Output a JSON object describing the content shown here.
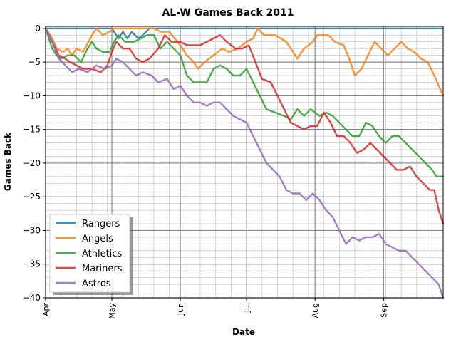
{
  "chart_data": {
    "type": "line",
    "title": "AL-W Games Back 2011",
    "xlabel": "Date",
    "ylabel": "Games Back",
    "xlim": [
      "2011-04-01",
      "2011-09-28"
    ],
    "ylim": [
      -40,
      0.3
    ],
    "yticks": [
      0,
      -5,
      -10,
      -15,
      -20,
      -25,
      -30,
      -35,
      -40
    ],
    "ytick_labels": [
      "0",
      "−5",
      "−10",
      "−15",
      "−20",
      "−25",
      "−30",
      "−35",
      "−40"
    ],
    "xticks": [
      {
        "date": "2011-04-01",
        "label": "Apr"
      },
      {
        "date": "2011-05-01",
        "label": "May"
      },
      {
        "date": "2011-06-01",
        "label": "Jun"
      },
      {
        "date": "2011-07-01",
        "label": "Jul"
      },
      {
        "date": "2011-08-01",
        "label": "Aug"
      },
      {
        "date": "2011-09-01",
        "label": "Sep"
      }
    ],
    "grid": {
      "major": true,
      "minor": true
    },
    "legend_position": "lower-left",
    "series": [
      {
        "name": "Rangers",
        "color": "#1f77b4",
        "points": [
          [
            "2011-04-01",
            0
          ],
          [
            "2011-05-01",
            0
          ],
          [
            "2011-05-04",
            -1.5
          ],
          [
            "2011-05-06",
            -0.5
          ],
          [
            "2011-05-08",
            -1.5
          ],
          [
            "2011-05-10",
            -0.5
          ],
          [
            "2011-05-13",
            -1.5
          ],
          [
            "2011-05-15",
            -1
          ],
          [
            "2011-05-18",
            0
          ],
          [
            "2011-09-28",
            0
          ]
        ]
      },
      {
        "name": "Angels",
        "color": "#ff7f0e",
        "points": [
          [
            "2011-04-01",
            0
          ],
          [
            "2011-04-04",
            -1.5
          ],
          [
            "2011-04-06",
            -3
          ],
          [
            "2011-04-09",
            -3.5
          ],
          [
            "2011-04-11",
            -3
          ],
          [
            "2011-04-13",
            -4
          ],
          [
            "2011-04-15",
            -3
          ],
          [
            "2011-04-18",
            -3.5
          ],
          [
            "2011-04-22",
            -1
          ],
          [
            "2011-04-24",
            0
          ],
          [
            "2011-04-27",
            -1
          ],
          [
            "2011-04-30",
            -0.5
          ],
          [
            "2011-05-02",
            0
          ],
          [
            "2011-05-20",
            0
          ],
          [
            "2011-05-23",
            -0.5
          ],
          [
            "2011-05-27",
            -0.5
          ],
          [
            "2011-06-01",
            -2.5
          ],
          [
            "2011-06-04",
            -4
          ],
          [
            "2011-06-07",
            -5
          ],
          [
            "2011-06-09",
            -6
          ],
          [
            "2011-06-12",
            -5
          ],
          [
            "2011-06-16",
            -4
          ],
          [
            "2011-06-20",
            -3
          ],
          [
            "2011-06-23",
            -3.5
          ],
          [
            "2011-06-27",
            -3
          ],
          [
            "2011-07-01",
            -2
          ],
          [
            "2011-07-04",
            -1.5
          ],
          [
            "2011-07-06",
            0
          ],
          [
            "2011-07-09",
            -1
          ],
          [
            "2011-07-14",
            -1
          ],
          [
            "2011-07-19",
            -2
          ],
          [
            "2011-07-22",
            -3.5
          ],
          [
            "2011-07-24",
            -4.5
          ],
          [
            "2011-07-27",
            -3
          ],
          [
            "2011-07-31",
            -2
          ],
          [
            "2011-08-02",
            -1
          ],
          [
            "2011-08-07",
            -1
          ],
          [
            "2011-08-10",
            -2
          ],
          [
            "2011-08-14",
            -2.5
          ],
          [
            "2011-08-17",
            -5
          ],
          [
            "2011-08-19",
            -7
          ],
          [
            "2011-08-22",
            -6
          ],
          [
            "2011-08-25",
            -4
          ],
          [
            "2011-08-28",
            -2
          ],
          [
            "2011-08-31",
            -3
          ],
          [
            "2011-09-03",
            -4
          ],
          [
            "2011-09-06",
            -3
          ],
          [
            "2011-09-09",
            -2
          ],
          [
            "2011-09-12",
            -3
          ],
          [
            "2011-09-15",
            -3.5
          ],
          [
            "2011-09-18",
            -4.5
          ],
          [
            "2011-09-21",
            -5
          ],
          [
            "2011-09-24",
            -7
          ],
          [
            "2011-09-28",
            -10
          ]
        ]
      },
      {
        "name": "Athletics",
        "color": "#2ca02c",
        "points": [
          [
            "2011-04-01",
            0
          ],
          [
            "2011-04-04",
            -3
          ],
          [
            "2011-04-06",
            -4
          ],
          [
            "2011-04-08",
            -4.5
          ],
          [
            "2011-04-11",
            -4
          ],
          [
            "2011-04-14",
            -4
          ],
          [
            "2011-04-17",
            -5
          ],
          [
            "2011-04-20",
            -3
          ],
          [
            "2011-04-22",
            -2
          ],
          [
            "2011-04-24",
            -3
          ],
          [
            "2011-04-27",
            -3.5
          ],
          [
            "2011-04-30",
            -3.5
          ],
          [
            "2011-05-02",
            -2
          ],
          [
            "2011-05-04",
            -1
          ],
          [
            "2011-05-07",
            -2
          ],
          [
            "2011-05-11",
            -2
          ],
          [
            "2011-05-14",
            -1.5
          ],
          [
            "2011-05-17",
            -1
          ],
          [
            "2011-05-20",
            -1
          ],
          [
            "2011-05-23",
            -3
          ],
          [
            "2011-05-26",
            -2
          ],
          [
            "2011-05-29",
            -3
          ],
          [
            "2011-06-01",
            -4
          ],
          [
            "2011-06-04",
            -7
          ],
          [
            "2011-06-07",
            -8
          ],
          [
            "2011-06-10",
            -8
          ],
          [
            "2011-06-13",
            -8
          ],
          [
            "2011-06-16",
            -6
          ],
          [
            "2011-06-19",
            -5.5
          ],
          [
            "2011-06-22",
            -6
          ],
          [
            "2011-06-25",
            -7
          ],
          [
            "2011-06-28",
            -7
          ],
          [
            "2011-07-01",
            -6
          ],
          [
            "2011-07-04",
            -8
          ],
          [
            "2011-07-07",
            -10
          ],
          [
            "2011-07-10",
            -12
          ],
          [
            "2011-07-14",
            -12.5
          ],
          [
            "2011-07-18",
            -13
          ],
          [
            "2011-07-21",
            -13.5
          ],
          [
            "2011-07-24",
            -12
          ],
          [
            "2011-07-27",
            -13
          ],
          [
            "2011-07-30",
            -12
          ],
          [
            "2011-08-03",
            -13
          ],
          [
            "2011-08-06",
            -12.5
          ],
          [
            "2011-08-09",
            -13
          ],
          [
            "2011-08-12",
            -14
          ],
          [
            "2011-08-15",
            -15
          ],
          [
            "2011-08-18",
            -16
          ],
          [
            "2011-08-21",
            -16
          ],
          [
            "2011-08-24",
            -14
          ],
          [
            "2011-08-27",
            -14.5
          ],
          [
            "2011-08-30",
            -16
          ],
          [
            "2011-09-02",
            -17
          ],
          [
            "2011-09-05",
            -16
          ],
          [
            "2011-09-08",
            -16
          ],
          [
            "2011-09-11",
            -17
          ],
          [
            "2011-09-14",
            -18
          ],
          [
            "2011-09-17",
            -19
          ],
          [
            "2011-09-20",
            -20
          ],
          [
            "2011-09-23",
            -21
          ],
          [
            "2011-09-25",
            -22
          ],
          [
            "2011-09-28",
            -22
          ]
        ]
      },
      {
        "name": "Mariners",
        "color": "#d62728",
        "points": [
          [
            "2011-04-01",
            0
          ],
          [
            "2011-04-04",
            -2
          ],
          [
            "2011-04-07",
            -4
          ],
          [
            "2011-04-10",
            -4.5
          ],
          [
            "2011-04-12",
            -5
          ],
          [
            "2011-04-15",
            -5.5
          ],
          [
            "2011-04-18",
            -6
          ],
          [
            "2011-04-22",
            -6
          ],
          [
            "2011-04-26",
            -6.5
          ],
          [
            "2011-04-29",
            -5.5
          ],
          [
            "2011-05-01",
            -3.5
          ],
          [
            "2011-05-03",
            -2
          ],
          [
            "2011-05-06",
            -3
          ],
          [
            "2011-05-09",
            -3
          ],
          [
            "2011-05-12",
            -4.5
          ],
          [
            "2011-05-15",
            -5
          ],
          [
            "2011-05-18",
            -4.5
          ],
          [
            "2011-05-22",
            -3
          ],
          [
            "2011-05-25",
            -1
          ],
          [
            "2011-05-28",
            -2
          ],
          [
            "2011-06-01",
            -2
          ],
          [
            "2011-06-04",
            -2.5
          ],
          [
            "2011-06-07",
            -2.5
          ],
          [
            "2011-06-10",
            -2.5
          ],
          [
            "2011-06-13",
            -2
          ],
          [
            "2011-06-16",
            -1.5
          ],
          [
            "2011-06-19",
            -1
          ],
          [
            "2011-06-22",
            -2
          ],
          [
            "2011-06-26",
            -3
          ],
          [
            "2011-06-29",
            -3
          ],
          [
            "2011-07-02",
            -2.5
          ],
          [
            "2011-07-05",
            -5
          ],
          [
            "2011-07-08",
            -7.5
          ],
          [
            "2011-07-12",
            -8
          ],
          [
            "2011-07-15",
            -10
          ],
          [
            "2011-07-18",
            -12
          ],
          [
            "2011-07-21",
            -14
          ],
          [
            "2011-07-24",
            -14.5
          ],
          [
            "2011-07-27",
            -15
          ],
          [
            "2011-07-30",
            -14.5
          ],
          [
            "2011-08-02",
            -14.5
          ],
          [
            "2011-08-05",
            -12.5
          ],
          [
            "2011-08-08",
            -14
          ],
          [
            "2011-08-11",
            -16
          ],
          [
            "2011-08-14",
            -16
          ],
          [
            "2011-08-17",
            -17
          ],
          [
            "2011-08-20",
            -18.5
          ],
          [
            "2011-08-23",
            -18
          ],
          [
            "2011-08-26",
            -17
          ],
          [
            "2011-08-29",
            -18
          ],
          [
            "2011-09-01",
            -19
          ],
          [
            "2011-09-04",
            -20
          ],
          [
            "2011-09-07",
            -21
          ],
          [
            "2011-09-10",
            -21
          ],
          [
            "2011-09-13",
            -20.5
          ],
          [
            "2011-09-16",
            -22
          ],
          [
            "2011-09-19",
            -23
          ],
          [
            "2011-09-22",
            -24
          ],
          [
            "2011-09-24",
            -24
          ],
          [
            "2011-09-26",
            -27
          ],
          [
            "2011-09-28",
            -29
          ]
        ]
      },
      {
        "name": "Astros",
        "color": "#9467bd",
        "points": [
          [
            "2011-04-01",
            0
          ],
          [
            "2011-04-04",
            -2
          ],
          [
            "2011-04-07",
            -4.5
          ],
          [
            "2011-04-10",
            -5.5
          ],
          [
            "2011-04-13",
            -6.5
          ],
          [
            "2011-04-16",
            -6
          ],
          [
            "2011-04-20",
            -6.5
          ],
          [
            "2011-04-24",
            -5.5
          ],
          [
            "2011-04-28",
            -6
          ],
          [
            "2011-05-01",
            -5.5
          ],
          [
            "2011-05-03",
            -4.5
          ],
          [
            "2011-05-06",
            -5
          ],
          [
            "2011-05-09",
            -6
          ],
          [
            "2011-05-12",
            -7
          ],
          [
            "2011-05-15",
            -6.5
          ],
          [
            "2011-05-19",
            -7
          ],
          [
            "2011-05-22",
            -8
          ],
          [
            "2011-05-26",
            -7.5
          ],
          [
            "2011-05-29",
            -9
          ],
          [
            "2011-06-01",
            -8.5
          ],
          [
            "2011-06-04",
            -10
          ],
          [
            "2011-06-07",
            -11
          ],
          [
            "2011-06-10",
            -11
          ],
          [
            "2011-06-13",
            -11.5
          ],
          [
            "2011-06-16",
            -11
          ],
          [
            "2011-06-19",
            -11
          ],
          [
            "2011-06-22",
            -12
          ],
          [
            "2011-06-25",
            -13
          ],
          [
            "2011-06-28",
            -13.5
          ],
          [
            "2011-07-01",
            -14
          ],
          [
            "2011-07-04",
            -16
          ],
          [
            "2011-07-07",
            -18
          ],
          [
            "2011-07-10",
            -20
          ],
          [
            "2011-07-13",
            -21
          ],
          [
            "2011-07-16",
            -22
          ],
          [
            "2011-07-19",
            -24
          ],
          [
            "2011-07-22",
            -24.5
          ],
          [
            "2011-07-25",
            -24.5
          ],
          [
            "2011-07-28",
            -25.5
          ],
          [
            "2011-07-31",
            -24.5
          ],
          [
            "2011-08-03",
            -25.5
          ],
          [
            "2011-08-06",
            -27
          ],
          [
            "2011-08-09",
            -28
          ],
          [
            "2011-08-12",
            -30
          ],
          [
            "2011-08-15",
            -32
          ],
          [
            "2011-08-18",
            -31
          ],
          [
            "2011-08-21",
            -31.5
          ],
          [
            "2011-08-24",
            -31
          ],
          [
            "2011-08-27",
            -31
          ],
          [
            "2011-08-30",
            -30.5
          ],
          [
            "2011-09-02",
            -32
          ],
          [
            "2011-09-05",
            -32.5
          ],
          [
            "2011-09-08",
            -33
          ],
          [
            "2011-09-11",
            -33
          ],
          [
            "2011-09-14",
            -34
          ],
          [
            "2011-09-17",
            -35
          ],
          [
            "2011-09-20",
            -36
          ],
          [
            "2011-09-23",
            -37
          ],
          [
            "2011-09-26",
            -38
          ],
          [
            "2011-09-28",
            -40
          ]
        ]
      }
    ]
  }
}
